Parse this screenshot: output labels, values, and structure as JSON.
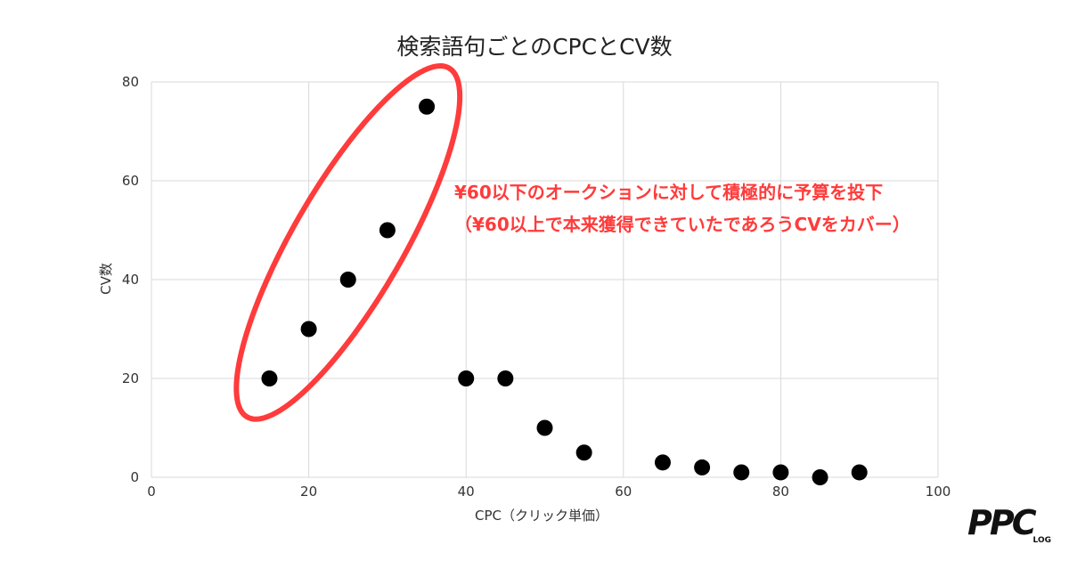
{
  "chart_data": {
    "type": "scatter",
    "title": "検索語句ごとのCPCとCV数",
    "xlabel": "CPC（クリック単価）",
    "ylabel": "CV数",
    "xlim": [
      0,
      100
    ],
    "ylim": [
      0,
      80
    ],
    "x_ticks": [
      "0",
      "20",
      "40",
      "60",
      "80",
      "100"
    ],
    "y_ticks": [
      "0",
      "20",
      "40",
      "60",
      "80"
    ],
    "grid": true,
    "points": [
      {
        "x": 15,
        "y": 20
      },
      {
        "x": 20,
        "y": 30
      },
      {
        "x": 25,
        "y": 40
      },
      {
        "x": 30,
        "y": 50
      },
      {
        "x": 35,
        "y": 75
      },
      {
        "x": 40,
        "y": 20
      },
      {
        "x": 45,
        "y": 20
      },
      {
        "x": 50,
        "y": 10
      },
      {
        "x": 55,
        "y": 5
      },
      {
        "x": 65,
        "y": 3
      },
      {
        "x": 70,
        "y": 2
      },
      {
        "x": 75,
        "y": 1
      },
      {
        "x": 80,
        "y": 1
      },
      {
        "x": 85,
        "y": 0
      },
      {
        "x": 90,
        "y": 1
      }
    ],
    "point_color": "#000000",
    "highlight": {
      "color": "#ff3b3b",
      "covers_x_range": [
        15,
        35
      ],
      "annotation_lines": [
        "¥60以下のオークションに対して積極的に予算を投下",
        "（¥60以上で本来獲得できていたであろうCVをカバー）"
      ]
    }
  },
  "logo": {
    "text": "PPC",
    "sub": "LOG"
  }
}
